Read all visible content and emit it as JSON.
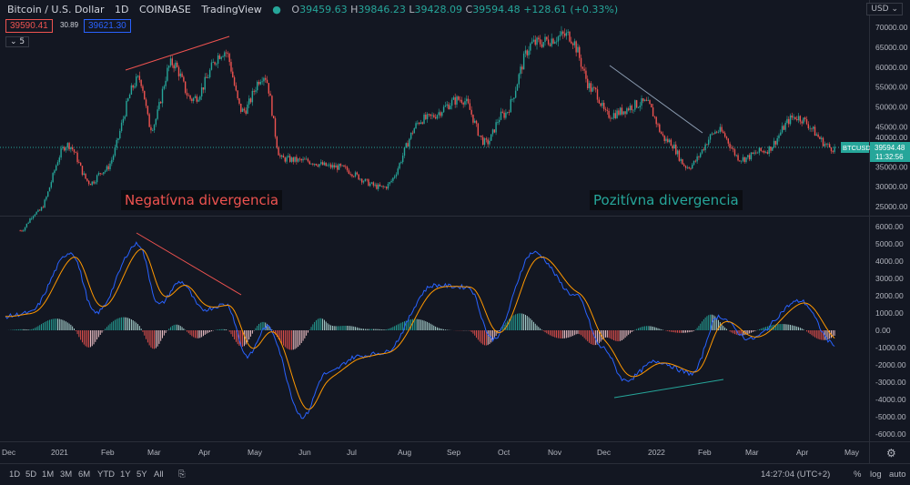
{
  "header": {
    "symbol": "Bitcoin / U.S. Dollar",
    "interval": "1D",
    "exchange": "COINBASE",
    "source": "TradingView",
    "open_label": "O",
    "open": "39459.63",
    "high_label": "H",
    "high": "39846.23",
    "low_label": "L",
    "low": "39428.09",
    "close_label": "C",
    "close": "39594.48",
    "change": "+128.61 (+0.33%)",
    "bid": "39590.41",
    "spread": "30.89",
    "ask": "39621.30",
    "indicator_count": "5"
  },
  "price_axis": {
    "currency": "USD",
    "ticks": [
      "70000.00",
      "65000.00",
      "60000.00",
      "55000.00",
      "50000.00",
      "45000.00",
      "40000.00",
      "35000.00",
      "30000.00",
      "25000.00"
    ],
    "last_price": "39594.48",
    "countdown": "11:32:56",
    "symbol_tag": "BTCUSD"
  },
  "macd_axis": {
    "ticks": [
      "6000.00",
      "5000.00",
      "4000.00",
      "3000.00",
      "2000.00",
      "1000.00",
      "0.00",
      "-1000.00",
      "-2000.00",
      "-3000.00",
      "-4000.00",
      "-5000.00",
      "-6000.00"
    ]
  },
  "time_axis": [
    "Dec",
    "2021",
    "Feb",
    "Mar",
    "Apr",
    "May",
    "Jun",
    "Jul",
    "Aug",
    "Sep",
    "Oct",
    "Nov",
    "Dec",
    "2022",
    "Feb",
    "Mar",
    "Apr",
    "May"
  ],
  "annotations": {
    "negative": "Negatívna divergencia",
    "positive": "Pozitívna divergencia"
  },
  "toolbar": {
    "ranges": [
      "1D",
      "5D",
      "1M",
      "3M",
      "6M",
      "YTD",
      "1Y",
      "5Y",
      "All"
    ],
    "clock": "14:27:04 (UTC+2)",
    "percent": "%",
    "log": "log",
    "auto": "auto"
  },
  "colors": {
    "up": "#26a69a",
    "down": "#ef5350",
    "macd": "#2962ff",
    "signal": "#ff9800",
    "background": "#131722"
  },
  "chart_data": [
    {
      "type": "candlestick",
      "title": "Bitcoin / U.S. Dollar 1D",
      "ylim": [
        22000,
        72000
      ],
      "close_waypoints": [
        [
          "2020-12-10",
          19000
        ],
        [
          "2020-12-20",
          23500
        ],
        [
          "2021-01-08",
          40500
        ],
        [
          "2021-01-22",
          31000
        ],
        [
          "2021-01-30",
          34000
        ],
        [
          "2021-02-21",
          57000
        ],
        [
          "2021-02-28",
          45000
        ],
        [
          "2021-03-13",
          61000
        ],
        [
          "2021-03-25",
          52000
        ],
        [
          "2021-04-14",
          64000
        ],
        [
          "2021-04-25",
          49000
        ],
        [
          "2021-05-08",
          58000
        ],
        [
          "2021-05-19",
          37000
        ],
        [
          "2021-06-01",
          36500
        ],
        [
          "2021-06-20",
          35000
        ],
        [
          "2021-07-20",
          29800
        ],
        [
          "2021-08-14",
          47000
        ],
        [
          "2021-09-06",
          52000
        ],
        [
          "2021-09-21",
          41000
        ],
        [
          "2021-10-01",
          48000
        ],
        [
          "2021-10-20",
          66000
        ],
        [
          "2021-11-10",
          68000
        ],
        [
          "2021-11-26",
          54000
        ],
        [
          "2021-12-04",
          48000
        ],
        [
          "2021-12-27",
          51000
        ],
        [
          "2022-01-10",
          41500
        ],
        [
          "2022-01-22",
          35000
        ],
        [
          "2022-02-10",
          44000
        ],
        [
          "2022-02-24",
          37000
        ],
        [
          "2022-03-10",
          39000
        ],
        [
          "2022-03-29",
          47500
        ],
        [
          "2022-04-22",
          39594
        ]
      ]
    },
    {
      "type": "line",
      "title": "MACD",
      "ylim": [
        -6500,
        6500
      ],
      "series": [
        {
          "macd_waypoints": [
            [
              "2020-12-01",
              800
            ],
            [
              "2020-12-15",
              1000
            ],
            [
              "2021-01-10",
              4500
            ],
            [
              "2021-01-25",
              1000
            ],
            [
              "2021-02-20",
              5000
            ],
            [
              "2021-03-05",
              1500
            ],
            [
              "2021-03-18",
              2800
            ],
            [
              "2021-04-01",
              1200
            ],
            [
              "2021-04-15",
              1500
            ],
            [
              "2021-04-28",
              -1500
            ],
            [
              "2021-05-10",
              200
            ],
            [
              "2021-06-01",
              -5000
            ],
            [
              "2021-06-15",
              -2500
            ],
            [
              "2021-07-05",
              -1500
            ],
            [
              "2021-07-20",
              -1300
            ],
            [
              "2021-08-20",
              2600
            ],
            [
              "2021-09-10",
              2500
            ],
            [
              "2021-09-25",
              -500
            ],
            [
              "2021-10-20",
              4500
            ],
            [
              "2021-11-15",
              2000
            ],
            [
              "2021-12-01",
              -1000
            ],
            [
              "2021-12-15",
              -2900
            ],
            [
              "2022-01-03",
              -1800
            ],
            [
              "2022-01-25",
              -2500
            ],
            [
              "2022-02-10",
              800
            ],
            [
              "2022-03-01",
              -500
            ],
            [
              "2022-04-01",
              1700
            ],
            [
              "2022-04-22",
              -800
            ]
          ]
        }
      ]
    }
  ]
}
